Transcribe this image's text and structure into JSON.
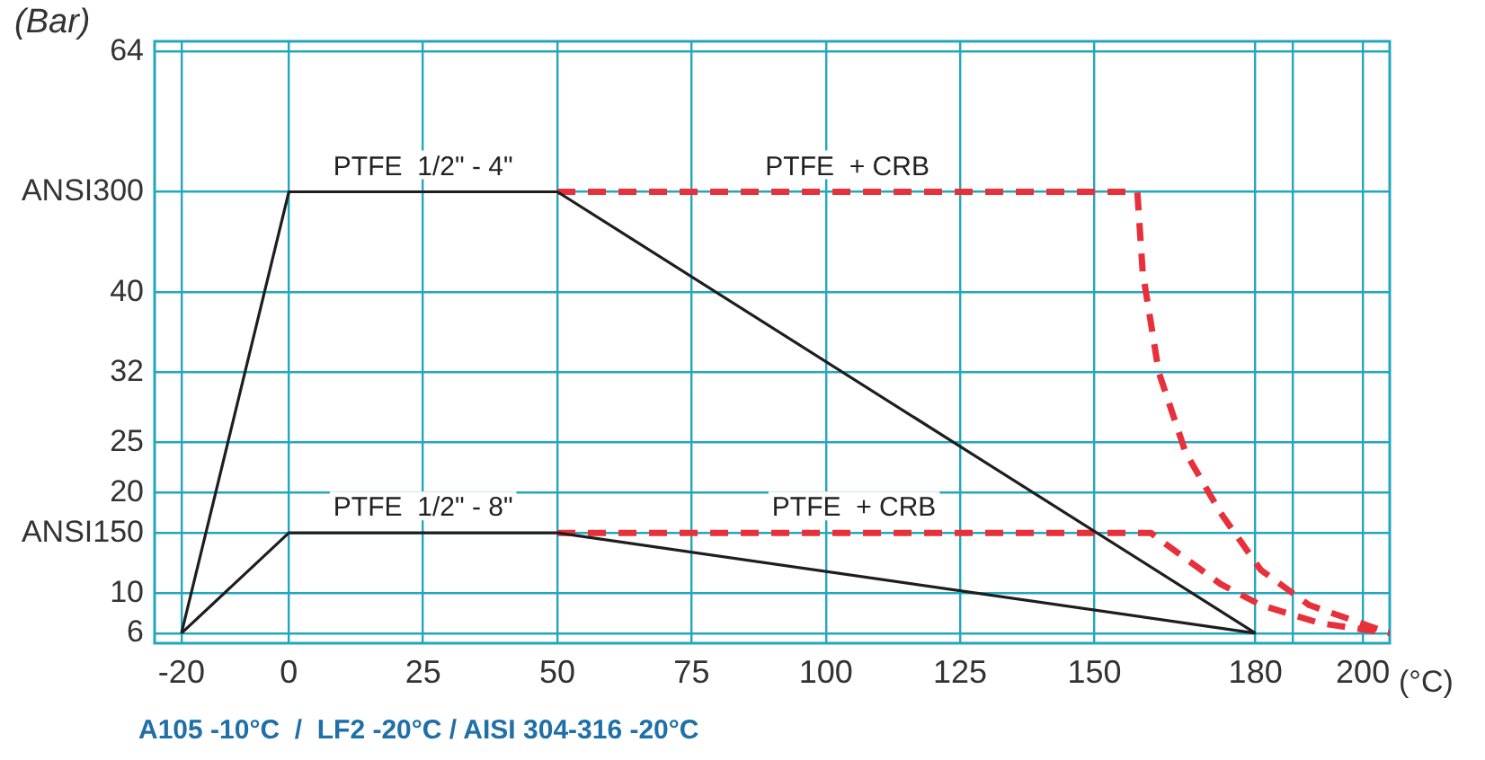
{
  "chart_data": {
    "type": "line",
    "xlabel": "(°C)",
    "ylabel": "(Bar)",
    "xlim": [
      -25,
      205
    ],
    "ylim": [
      5,
      65
    ],
    "xticks": [
      -20,
      0,
      25,
      50,
      75,
      100,
      125,
      150,
      180,
      {
        "value": 187,
        "label": null
      },
      200
    ],
    "yticks": [
      6,
      10,
      {
        "value": 16,
        "label": "ANSI150"
      },
      20,
      25,
      32,
      40,
      {
        "value": 50,
        "label": "ANSI300"
      },
      64
    ],
    "grid": true,
    "series": [
      {
        "name": "PTFE  1/2\" - 4\"",
        "color": "#1e1e1e",
        "line_style": "solid",
        "x": [
          -20,
          0,
          50,
          180
        ],
        "values": [
          6,
          50,
          50,
          6
        ]
      },
      {
        "name": "PTFE  1/2\" - 8\"",
        "color": "#1e1e1e",
        "line_style": "solid",
        "x": [
          -20,
          0,
          50,
          180
        ],
        "values": [
          6,
          16,
          16,
          6
        ]
      },
      {
        "name": "PTFE  + CRB",
        "color": "#e8303a",
        "line_style": "dashed",
        "x": [
          50,
          158,
          159,
          162,
          167,
          173.5,
          181,
          190,
          205
        ],
        "values": [
          50,
          50,
          42,
          32,
          24,
          18,
          12.3,
          8.8,
          6
        ]
      },
      {
        "name": "PTFE  + CRB",
        "color": "#e8303a",
        "line_style": "dashed",
        "x": [
          50,
          160.5,
          163.5,
          173.5,
          181,
          192,
          205
        ],
        "values": [
          16,
          16,
          14.8,
          10.9,
          8.8,
          7,
          6
        ]
      }
    ],
    "annotations": [
      "A105 -10°C  /  LF2 -20°C / AISI 304-316 -20°C"
    ]
  }
}
